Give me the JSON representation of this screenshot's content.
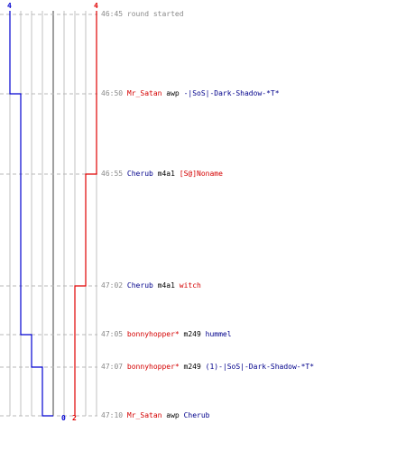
{
  "colors": {
    "team_a": "#0000d0",
    "team_b": "#e00000",
    "guide": "#c0c0c0",
    "center": "#808080",
    "time": "#8a8a8a"
  },
  "scores": {
    "team_a_start": "4",
    "team_b_start": "4",
    "team_a_end": "0",
    "team_b_end": "2"
  },
  "events": [
    {
      "time": "46:45",
      "actor": "",
      "actor_team": "",
      "verb": "",
      "target": "",
      "target_team": "",
      "info": "round started"
    },
    {
      "time": "46:50",
      "actor": "Mr_Satan",
      "actor_team": "red",
      "verb": "awp",
      "target": "-|SoS|-Dark-Shadow-*T*",
      "target_team": "blue"
    },
    {
      "time": "46:55",
      "actor": "Cherub",
      "actor_team": "blue",
      "verb": "m4a1",
      "target": "[S@]Noname",
      "target_team": "red"
    },
    {
      "time": "47:02",
      "actor": "Cherub",
      "actor_team": "blue",
      "verb": "m4a1",
      "target": "witch",
      "target_team": "red"
    },
    {
      "time": "47:05",
      "actor": "bonnyhopper*",
      "actor_team": "red",
      "verb": "m249",
      "target": "hummel",
      "target_team": "blue"
    },
    {
      "time": "47:07",
      "actor": "bonnyhopper*",
      "actor_team": "red",
      "verb": "m249",
      "target": "(1)-|SoS|-Dark-Shadow-*T*",
      "target_team": "blue"
    },
    {
      "time": "47:10",
      "actor": "Mr_Satan",
      "actor_team": "red",
      "verb": "awp",
      "target": "Cherub",
      "target_team": "blue"
    }
  ],
  "chart_data": {
    "type": "line",
    "x": [
      "46:45",
      "46:50",
      "46:55",
      "47:02",
      "47:05",
      "47:07",
      "47:10"
    ],
    "series": [
      {
        "values": [
          4,
          3,
          3,
          3,
          2,
          1,
          0
        ]
      },
      {
        "values": [
          4,
          4,
          3,
          2,
          2,
          2,
          2
        ]
      }
    ],
    "ylim": [
      0,
      4
    ]
  }
}
